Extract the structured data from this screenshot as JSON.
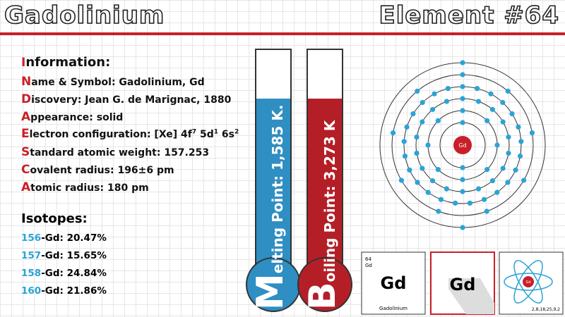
{
  "header": {
    "title": "Gadolinium",
    "element_label": "Element #64"
  },
  "info": {
    "heading": "Information:",
    "items": [
      "Name & Symbol: Gadolinium, Gd",
      "Discovery: Jean G. de Marignac, 1880",
      "Appearance: solid"
    ],
    "electron_configuration": [
      "Electron configuration: [Xe] 4f",
      "7",
      " 5d",
      "1",
      " 6s",
      "2"
    ],
    "items_after": [
      "Standard atomic weight: 157.253",
      "Covalent radius: 196±6 pm",
      "Atomic radius: 180 pm"
    ]
  },
  "isotopes": {
    "heading": "Isotopes:",
    "items": [
      {
        "mass": "156",
        "rest": "-Gd: 20.47%"
      },
      {
        "mass": "157",
        "rest": "-Gd: 15.65%"
      },
      {
        "mass": "158",
        "rest": "-Gd: 24.84%"
      },
      {
        "mass": "160",
        "rest": "-Gd: 21.86%"
      }
    ]
  },
  "melting": {
    "initial": "M",
    "rest": "elting Point: 1,585 K."
  },
  "boiling": {
    "initial": "B",
    "rest": "oiling Point: 3,273 K"
  },
  "atom": {
    "nucleus": "Gd",
    "shells": "2,8,18,25,9,2"
  },
  "cards": {
    "number": "64",
    "small_symbol": "Gd",
    "symbol": "Gd",
    "name": "Gadolinium",
    "symbol_shadow": "Gd",
    "icon_nucleus": "Gd"
  }
}
